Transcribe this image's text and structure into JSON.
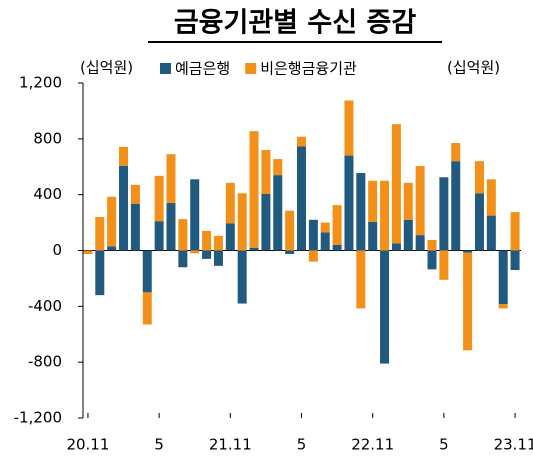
{
  "chart_data": {
    "type": "stacked_bar",
    "title": "금융기관별 수신 증감",
    "y_label": "(십억원)",
    "y2_label": "(십억원)",
    "categories": [
      "20.11",
      null,
      null,
      null,
      null,
      null,
      "5",
      null,
      null,
      null,
      null,
      null,
      "21.11",
      null,
      null,
      null,
      null,
      null,
      "5",
      null,
      null,
      null,
      null,
      null,
      "22.11",
      null,
      null,
      null,
      null,
      null,
      "5",
      null,
      null,
      null,
      null,
      null,
      "23.11"
    ],
    "series": [
      {
        "name": "예금은행",
        "color": "#215a7e",
        "values": [
          0,
          -320,
          30,
          607,
          335,
          -300,
          210,
          340,
          -120,
          510,
          -60,
          -110,
          195,
          -380,
          20,
          405,
          540,
          -25,
          745,
          220,
          130,
          40,
          680,
          555,
          205,
          -810,
          50,
          220,
          110,
          -135,
          525,
          640,
          -15,
          410,
          250,
          -385,
          -140
        ]
      },
      {
        "name": "비은행금융기관",
        "color": "#f39019",
        "values": [
          -25,
          240,
          355,
          135,
          135,
          -230,
          325,
          350,
          225,
          -20,
          140,
          105,
          290,
          410,
          835,
          315,
          115,
          285,
          70,
          -80,
          70,
          285,
          395,
          -415,
          295,
          500,
          855,
          265,
          495,
          75,
          -210,
          130,
          -700,
          230,
          260,
          -30,
          275
        ]
      }
    ],
    "ylim": [
      -1200,
      1200
    ],
    "yticks": [
      {
        "value": -1200,
        "label": "-1,200"
      },
      -800,
      -400,
      0,
      400,
      800,
      {
        "value": 1200,
        "label": "1,200"
      }
    ]
  }
}
